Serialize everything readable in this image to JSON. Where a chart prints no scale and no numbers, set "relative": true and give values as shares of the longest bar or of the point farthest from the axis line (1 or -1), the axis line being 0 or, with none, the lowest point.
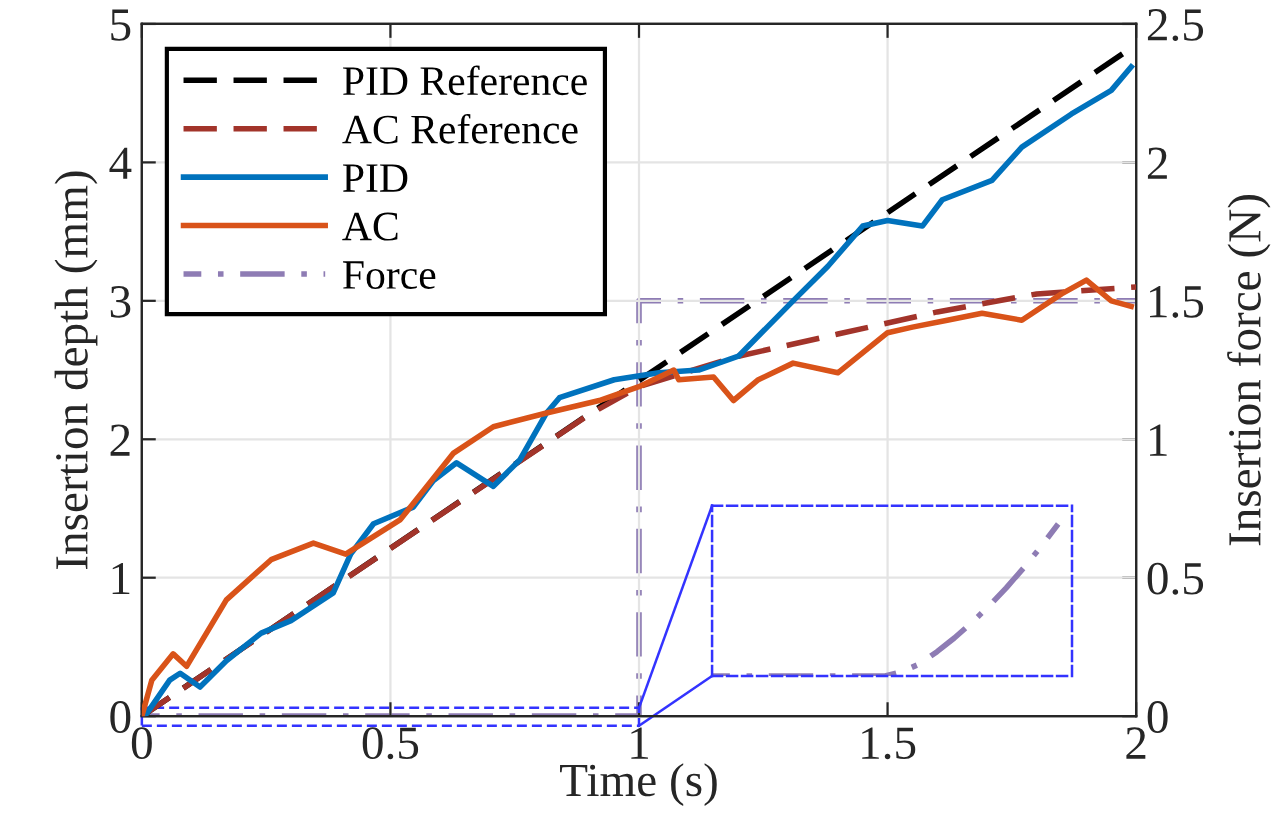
{
  "chart_data": [
    {
      "type": "line",
      "xlabel": "Time (s)",
      "ylabel": "Insertion depth (mm)",
      "y2label": "Insertion force (N)",
      "xlim": [
        0,
        2
      ],
      "xticks": [
        0,
        0.5,
        1,
        1.5,
        2
      ],
      "ylim": [
        0,
        5
      ],
      "yticks": [
        0,
        1,
        2,
        3,
        4,
        5
      ],
      "y2lim": [
        0,
        2.5
      ],
      "y2ticks": [
        0,
        0.5,
        1,
        1.5,
        2,
        2.5
      ],
      "grid": true,
      "legend": "top left",
      "marker": "none",
      "series": [
        {
          "name": "PID Reference",
          "color": "#000000",
          "line_style": "dashed",
          "x": [
            0,
            2
          ],
          "values": [
            0,
            4.85
          ]
        },
        {
          "name": "AC Reference",
          "color": "#a2342a",
          "line_style": "dashed",
          "x": [
            0,
            0.9,
            1.0,
            1.2,
            1.4,
            1.6,
            1.8,
            2.0
          ],
          "values": [
            0,
            2.18,
            2.38,
            2.6,
            2.76,
            2.92,
            3.05,
            3.1
          ]
        },
        {
          "name": "PID",
          "color": "#0072bd",
          "line_style": "solid",
          "x": [
            0,
            0.01,
            0.056,
            0.077,
            0.117,
            0.17,
            0.24,
            0.3,
            0.385,
            0.42,
            0.466,
            0.546,
            0.586,
            0.633,
            0.707,
            0.76,
            0.814,
            0.84,
            0.95,
            1.04,
            1.12,
            1.2,
            1.31,
            1.38,
            1.45,
            1.5,
            1.57,
            1.61,
            1.71,
            1.77,
            1.87,
            1.95,
            1.99
          ],
          "values": [
            0,
            0.02,
            0.26,
            0.31,
            0.21,
            0.4,
            0.6,
            0.69,
            0.89,
            1.17,
            1.39,
            1.51,
            1.7,
            1.83,
            1.66,
            1.85,
            2.19,
            2.3,
            2.43,
            2.48,
            2.5,
            2.6,
            3.0,
            3.25,
            3.54,
            3.58,
            3.54,
            3.73,
            3.87,
            4.11,
            4.35,
            4.52,
            4.69
          ]
        },
        {
          "name": "AC",
          "color": "#d95319",
          "line_style": "solid",
          "x": [
            0,
            0.02,
            0.063,
            0.09,
            0.17,
            0.26,
            0.345,
            0.41,
            0.52,
            0.627,
            0.707,
            0.814,
            0.92,
            1.0,
            1.07,
            1.08,
            1.15,
            1.19,
            1.24,
            1.31,
            1.4,
            1.5,
            1.55,
            1.62,
            1.69,
            1.77,
            1.85,
            1.9,
            1.95,
            1.99
          ],
          "values": [
            0,
            0.26,
            0.45,
            0.36,
            0.84,
            1.13,
            1.25,
            1.17,
            1.42,
            1.9,
            2.09,
            2.19,
            2.28,
            2.38,
            2.5,
            2.43,
            2.45,
            2.28,
            2.43,
            2.55,
            2.48,
            2.77,
            2.81,
            2.86,
            2.91,
            2.86,
            3.05,
            3.15,
            3.0,
            2.96
          ]
        },
        {
          "name": "Force",
          "color": "#8e7cb4",
          "line_style": "dashdot",
          "axis": "y2",
          "x": [
            0,
            1,
            1,
            2
          ],
          "values": [
            0,
            0,
            1.5,
            1.5
          ]
        }
      ]
    },
    {
      "type": "line",
      "relative": true,
      "tick_labels": false,
      "categories": [
        null,
        null,
        null,
        null,
        null,
        null,
        null,
        null,
        null,
        null,
        null,
        null,
        null,
        null,
        null,
        null,
        null,
        null,
        null,
        null,
        null
      ],
      "series": [
        {
          "color": "#8e7cb4",
          "line_style": "dashdot",
          "values": [
            0,
            0,
            0,
            0,
            0,
            0,
            0,
            0,
            0,
            0,
            0,
            0.03,
            0.08,
            0.16,
            0.25,
            0.35,
            0.46,
            0.58,
            0.71,
            0.85,
            1.0
          ]
        }
      ]
    }
  ]
}
